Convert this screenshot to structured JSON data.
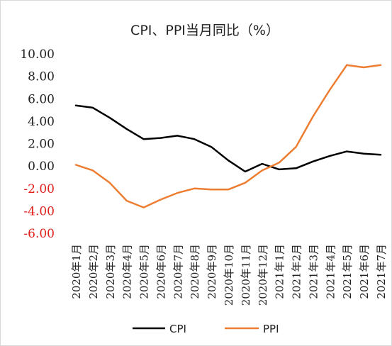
{
  "chart_data": {
    "type": "line",
    "title": "CPI、PPI当月同比（%）",
    "xlabel": "",
    "ylabel": "",
    "ylim": [
      -6,
      10
    ],
    "yticks": [
      "10.00",
      "8.00",
      "6.00",
      "4.00",
      "2.00",
      "0.00",
      "-2.00",
      "-4.00",
      "-6.00"
    ],
    "ytick_values": [
      10,
      8,
      6,
      4,
      2,
      0,
      -2,
      -4,
      -6
    ],
    "negative_tick_color": "#e0201b",
    "positive_tick_color": "#222222",
    "grid": false,
    "legend_position": "bottom",
    "categories": [
      "2020年1月",
      "2020年2月",
      "2020年3月",
      "2020年4月",
      "2020年5月",
      "2020年6月",
      "2020年7月",
      "2020年8月",
      "2020年9月",
      "2020年10月",
      "2020年11月",
      "2020年12月",
      "2021年1月",
      "2021年2月",
      "2021年3月",
      "2021年4月",
      "2021年5月",
      "2021年6月",
      "2021年7月"
    ],
    "series": [
      {
        "name": "CPI",
        "color": "#000000",
        "values": [
          5.4,
          5.2,
          4.3,
          3.3,
          2.4,
          2.5,
          2.7,
          2.4,
          1.7,
          0.5,
          -0.5,
          0.2,
          -0.3,
          -0.2,
          0.4,
          0.9,
          1.3,
          1.1,
          1.0
        ]
      },
      {
        "name": "PPI",
        "color": "#ed7d31",
        "values": [
          0.1,
          -0.4,
          -1.5,
          -3.1,
          -3.7,
          -3.0,
          -2.4,
          -2.0,
          -2.1,
          -2.1,
          -1.5,
          -0.4,
          0.3,
          1.7,
          4.4,
          6.8,
          9.0,
          8.8,
          9.0
        ]
      }
    ]
  }
}
